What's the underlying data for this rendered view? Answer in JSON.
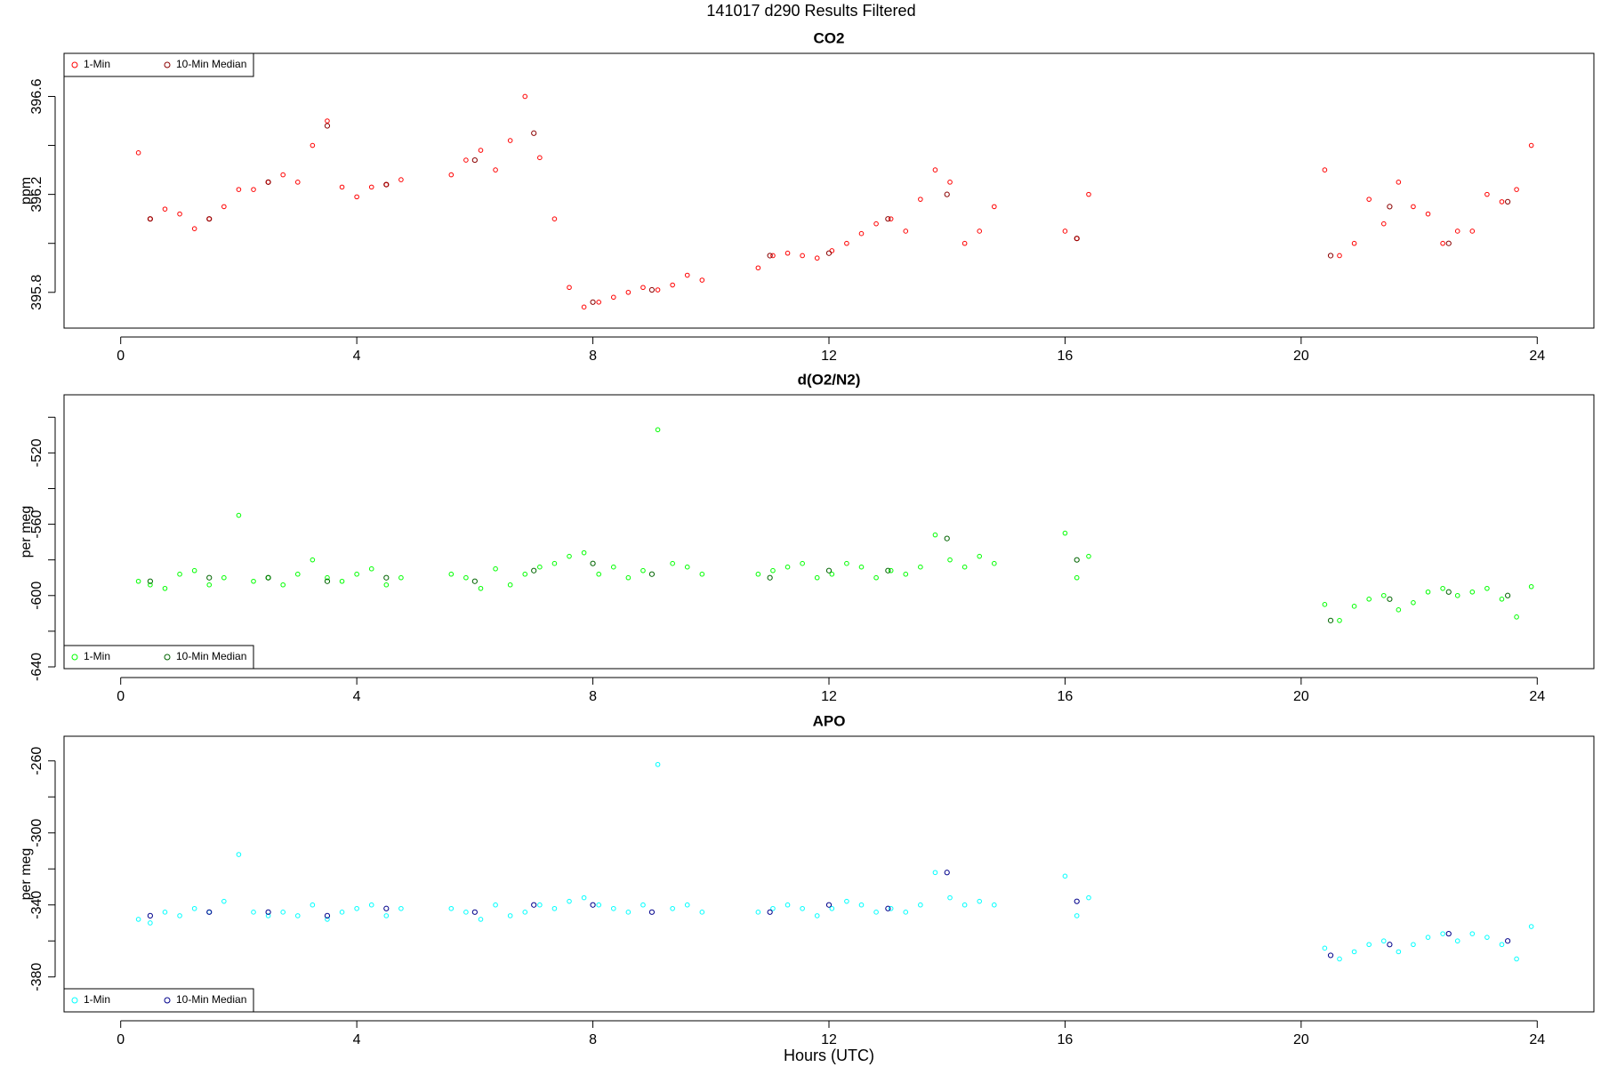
{
  "title": "141017   d290   Results Filtered",
  "chart_data": [
    {
      "type": "scatter",
      "title": "CO2",
      "y_label": "ppm",
      "xlim": [
        -0.96,
        24.96
      ],
      "xticks": [
        0,
        4,
        8,
        12,
        16,
        20,
        24
      ],
      "ylim": [
        395.654,
        396.776
      ],
      "yticks": [
        395.8,
        396.2,
        396.6
      ],
      "yticks_minor": [
        396.0,
        396.4
      ],
      "legend": "top-left",
      "series": [
        {
          "name": "1-Min",
          "color": "#ff0000",
          "x": [
            0.3,
            0.5,
            0.75,
            1.0,
            1.25,
            1.5,
            1.75,
            2.0,
            2.25,
            2.5,
            2.75,
            3.0,
            3.25,
            3.5,
            3.75,
            4.0,
            4.25,
            4.5,
            4.75,
            5.6,
            5.85,
            6.1,
            6.35,
            6.6,
            6.85,
            7.1,
            7.35,
            7.6,
            7.85,
            8.1,
            8.35,
            8.6,
            8.85,
            9.1,
            9.35,
            9.6,
            9.85,
            10.8,
            11.05,
            11.3,
            11.55,
            11.8,
            12.05,
            12.3,
            12.55,
            12.8,
            13.05,
            13.3,
            13.55,
            13.8,
            14.05,
            14.3,
            14.55,
            14.8,
            16.0,
            16.2,
            16.4,
            20.4,
            20.65,
            20.9,
            21.15,
            21.4,
            21.65,
            21.9,
            22.15,
            22.4,
            22.65,
            22.9,
            23.15,
            23.4,
            23.65,
            23.9
          ],
          "values": [
            396.37,
            396.1,
            396.14,
            396.12,
            396.06,
            396.1,
            396.15,
            396.22,
            396.22,
            396.25,
            396.28,
            396.25,
            396.4,
            396.5,
            396.23,
            396.19,
            396.23,
            396.24,
            396.26,
            396.28,
            396.34,
            396.38,
            396.3,
            396.42,
            396.6,
            396.35,
            396.1,
            395.82,
            395.74,
            395.76,
            395.78,
            395.8,
            395.82,
            395.81,
            395.83,
            395.87,
            395.85,
            395.9,
            395.95,
            395.96,
            395.95,
            395.94,
            395.97,
            396.0,
            396.04,
            396.08,
            396.1,
            396.05,
            396.18,
            396.3,
            396.25,
            396.0,
            396.05,
            396.15,
            396.05,
            396.02,
            396.2,
            396.3,
            395.95,
            396.0,
            396.18,
            396.08,
            396.25,
            396.15,
            396.12,
            396.0,
            396.05,
            396.05,
            396.2,
            396.17,
            396.22,
            396.4
          ]
        },
        {
          "name": "10-Min Median",
          "color": "#8b0000",
          "x": [
            0.5,
            1.5,
            2.5,
            3.5,
            4.5,
            6.0,
            7.0,
            8.0,
            9.0,
            11.0,
            12.0,
            13.0,
            14.0,
            16.2,
            20.5,
            21.5,
            22.5,
            23.5
          ],
          "values": [
            396.1,
            396.1,
            396.25,
            396.48,
            396.24,
            396.34,
            396.45,
            395.76,
            395.81,
            395.95,
            395.96,
            396.1,
            396.2,
            396.02,
            395.95,
            396.15,
            396.0,
            396.17
          ]
        }
      ]
    },
    {
      "type": "scatter",
      "title": "d(O2/N2)",
      "y_label": "per meg",
      "xlim": [
        -0.96,
        24.96
      ],
      "xticks": [
        0,
        4,
        8,
        12,
        16,
        20,
        24
      ],
      "ylim": [
        -641,
        -487.4
      ],
      "yticks": [
        -640,
        -600,
        -560,
        -520
      ],
      "yticks_minor": [
        -620,
        -580,
        -540,
        -500
      ],
      "legend": "bottom-left",
      "series": [
        {
          "name": "1-Min",
          "color": "#00ff00",
          "x": [
            0.3,
            0.5,
            0.75,
            1.0,
            1.25,
            1.5,
            1.75,
            2.0,
            2.25,
            2.5,
            2.75,
            3.0,
            3.25,
            3.5,
            3.75,
            4.0,
            4.25,
            4.5,
            4.75,
            5.6,
            5.85,
            6.1,
            6.35,
            6.6,
            6.85,
            7.1,
            7.35,
            7.6,
            7.85,
            8.1,
            8.35,
            8.6,
            8.85,
            9.1,
            9.35,
            9.6,
            9.85,
            10.8,
            11.05,
            11.3,
            11.55,
            11.8,
            12.05,
            12.3,
            12.55,
            12.8,
            13.05,
            13.3,
            13.55,
            13.8,
            14.05,
            14.3,
            14.55,
            14.8,
            16.0,
            16.2,
            16.4,
            20.4,
            20.65,
            20.9,
            21.15,
            21.4,
            21.65,
            21.9,
            22.15,
            22.4,
            22.65,
            22.9,
            23.15,
            23.4,
            23.65,
            23.9
          ],
          "values": [
            -592,
            -594,
            -596,
            -588,
            -586,
            -594,
            -590,
            -555,
            -592,
            -590,
            -594,
            -588,
            -580,
            -590,
            -592,
            -588,
            -585,
            -594,
            -590,
            -588,
            -590,
            -596,
            -585,
            -594,
            -588,
            -584,
            -582,
            -578,
            -576,
            -588,
            -584,
            -590,
            -586,
            -507,
            -582,
            -584,
            -588,
            -588,
            -586,
            -584,
            -582,
            -590,
            -588,
            -582,
            -584,
            -590,
            -586,
            -588,
            -584,
            -566,
            -580,
            -584,
            -578,
            -582,
            -565,
            -590,
            -578,
            -605,
            -614,
            -606,
            -602,
            -600,
            -608,
            -604,
            -598,
            -596,
            -600,
            -598,
            -596,
            -602,
            -612,
            -595
          ]
        },
        {
          "name": "10-Min Median",
          "color": "#006400",
          "x": [
            0.5,
            1.5,
            2.5,
            3.5,
            4.5,
            6.0,
            7.0,
            8.0,
            9.0,
            11.0,
            12.0,
            13.0,
            14.0,
            16.2,
            20.5,
            21.5,
            22.5,
            23.5
          ],
          "values": [
            -592,
            -590,
            -590,
            -592,
            -590,
            -592,
            -586,
            -582,
            -588,
            -590,
            -586,
            -586,
            -568,
            -580,
            -614,
            -602,
            -598,
            -600
          ]
        }
      ]
    },
    {
      "type": "scatter",
      "title": "APO",
      "y_label": "per meg",
      "x_label": "Hours (UTC)",
      "xlim": [
        -0.96,
        24.96
      ],
      "xticks": [
        0,
        4,
        8,
        12,
        16,
        20,
        24
      ],
      "ylim": [
        -399.4,
        -246.3
      ],
      "yticks": [
        -380,
        -340,
        -300,
        -260
      ],
      "yticks_minor": [
        -360,
        -320,
        -280
      ],
      "legend": "bottom-left",
      "series": [
        {
          "name": "1-Min",
          "color": "#00ffff",
          "x": [
            0.3,
            0.5,
            0.75,
            1.0,
            1.25,
            1.5,
            1.75,
            2.0,
            2.25,
            2.5,
            2.75,
            3.0,
            3.25,
            3.5,
            3.75,
            4.0,
            4.25,
            4.5,
            4.75,
            5.6,
            5.85,
            6.1,
            6.35,
            6.6,
            6.85,
            7.1,
            7.35,
            7.6,
            7.85,
            8.1,
            8.35,
            8.6,
            8.85,
            9.1,
            9.35,
            9.6,
            9.85,
            10.8,
            11.05,
            11.3,
            11.55,
            11.8,
            12.05,
            12.3,
            12.55,
            12.8,
            13.05,
            13.3,
            13.55,
            13.8,
            14.05,
            14.3,
            14.55,
            14.8,
            16.0,
            16.2,
            16.4,
            20.4,
            20.65,
            20.9,
            21.15,
            21.4,
            21.65,
            21.9,
            22.15,
            22.4,
            22.65,
            22.9,
            23.15,
            23.4,
            23.65,
            23.9
          ],
          "values": [
            -348,
            -350,
            -344,
            -346,
            -342,
            -344,
            -338,
            -312,
            -344,
            -346,
            -344,
            -346,
            -340,
            -348,
            -344,
            -342,
            -340,
            -346,
            -342,
            -342,
            -344,
            -348,
            -340,
            -346,
            -344,
            -340,
            -342,
            -338,
            -336,
            -340,
            -342,
            -344,
            -340,
            -262,
            -342,
            -340,
            -344,
            -344,
            -342,
            -340,
            -342,
            -346,
            -342,
            -338,
            -340,
            -344,
            -342,
            -344,
            -340,
            -322,
            -336,
            -340,
            -338,
            -340,
            -324,
            -346,
            -336,
            -364,
            -370,
            -366,
            -362,
            -360,
            -366,
            -362,
            -358,
            -356,
            -360,
            -356,
            -358,
            -362,
            -370,
            -352
          ]
        },
        {
          "name": "10-Min Median",
          "color": "#00008b",
          "x": [
            0.5,
            1.5,
            2.5,
            3.5,
            4.5,
            6.0,
            7.0,
            8.0,
            9.0,
            11.0,
            12.0,
            13.0,
            14.0,
            16.2,
            20.5,
            21.5,
            22.5,
            23.5
          ],
          "values": [
            -346,
            -344,
            -344,
            -346,
            -342,
            -344,
            -340,
            -340,
            -344,
            -344,
            -340,
            -342,
            -322,
            -338,
            -368,
            -362,
            -356,
            -360
          ]
        }
      ]
    }
  ]
}
